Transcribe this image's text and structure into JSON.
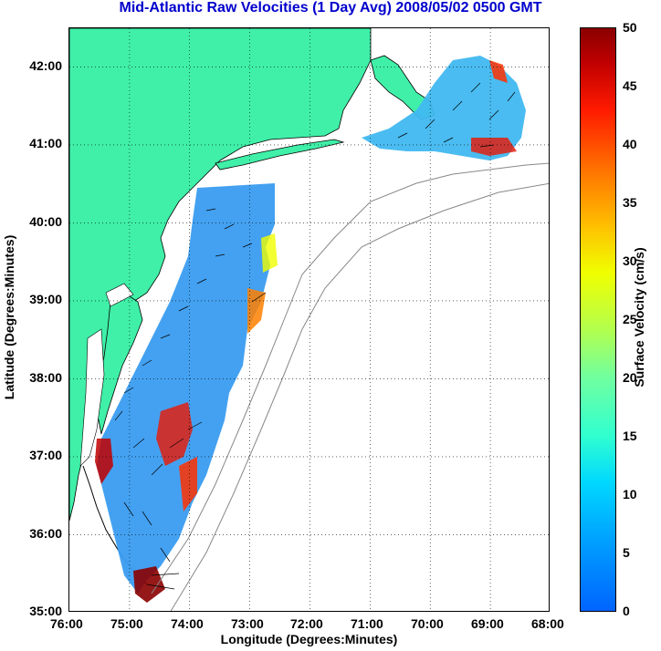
{
  "title": "Mid-Atlantic Raw Velocities (1 Day Avg) 2008/05/02 0500 GMT",
  "axes": {
    "xlabel": "Longitude (Degrees:Minutes)",
    "ylabel": "Latitude (Degrees:Minutes)",
    "x_ticks": [
      "76:00",
      "75:00",
      "74:00",
      "73:00",
      "72:00",
      "71:00",
      "70:00",
      "69:00",
      "68:00"
    ],
    "y_ticks": [
      "35:00",
      "36:00",
      "37:00",
      "38:00",
      "39:00",
      "40:00",
      "41:00",
      "42:00"
    ]
  },
  "colorbar": {
    "label": "Surface Velocity (cm/s)",
    "ticks": [
      "0",
      "5",
      "10",
      "15",
      "20",
      "25",
      "30",
      "35",
      "40",
      "45",
      "50"
    ],
    "range": [
      0,
      50
    ]
  },
  "colors": {
    "land": "#40f0a8",
    "isobath": "#888888",
    "title": "#0000cc"
  }
}
